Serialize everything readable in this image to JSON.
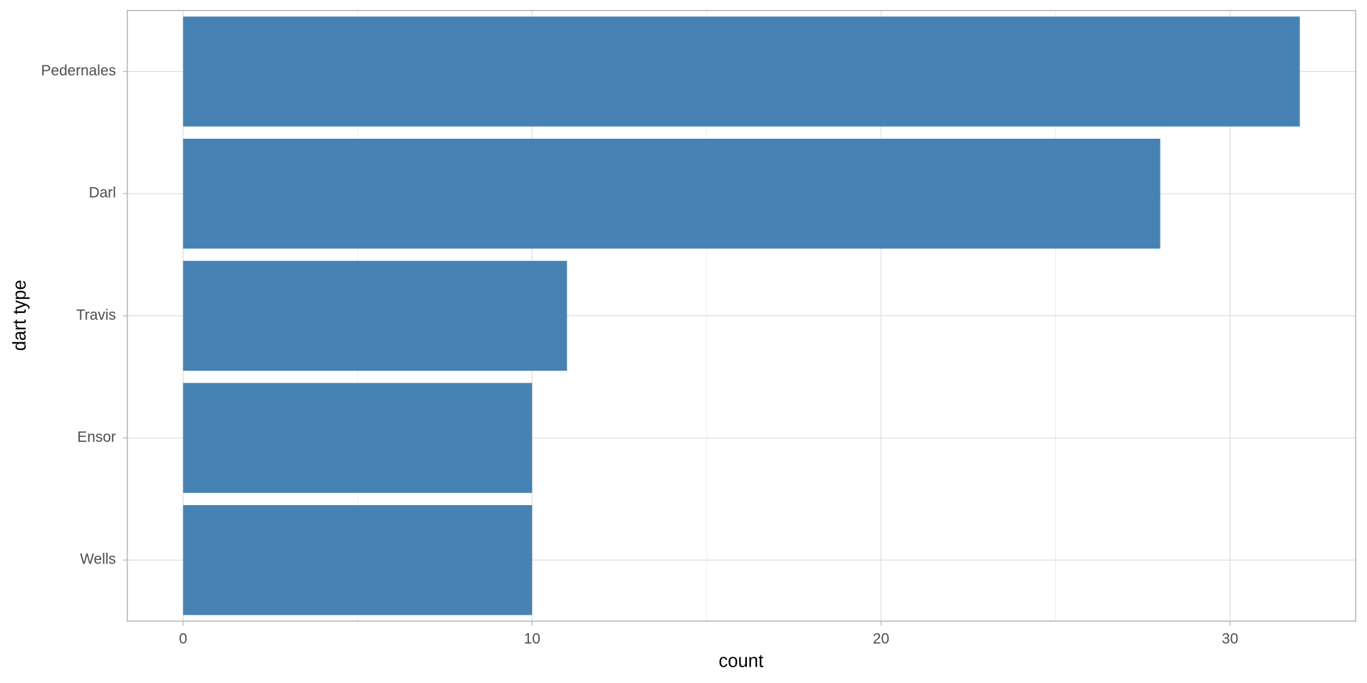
{
  "chart_data": {
    "type": "bar",
    "orientation": "horizontal",
    "x_label": "count",
    "y_label": "dart type",
    "categories": [
      "Pedernales",
      "Darl",
      "Travis",
      "Ensor",
      "Wells"
    ],
    "values": [
      32,
      28,
      11,
      10,
      10
    ],
    "color": "#4682b4",
    "xlim": [
      -1.6,
      33.6
    ],
    "xticks": [
      0,
      10,
      20,
      30
    ],
    "xminor": [
      5,
      15,
      25
    ],
    "grid": true
  }
}
